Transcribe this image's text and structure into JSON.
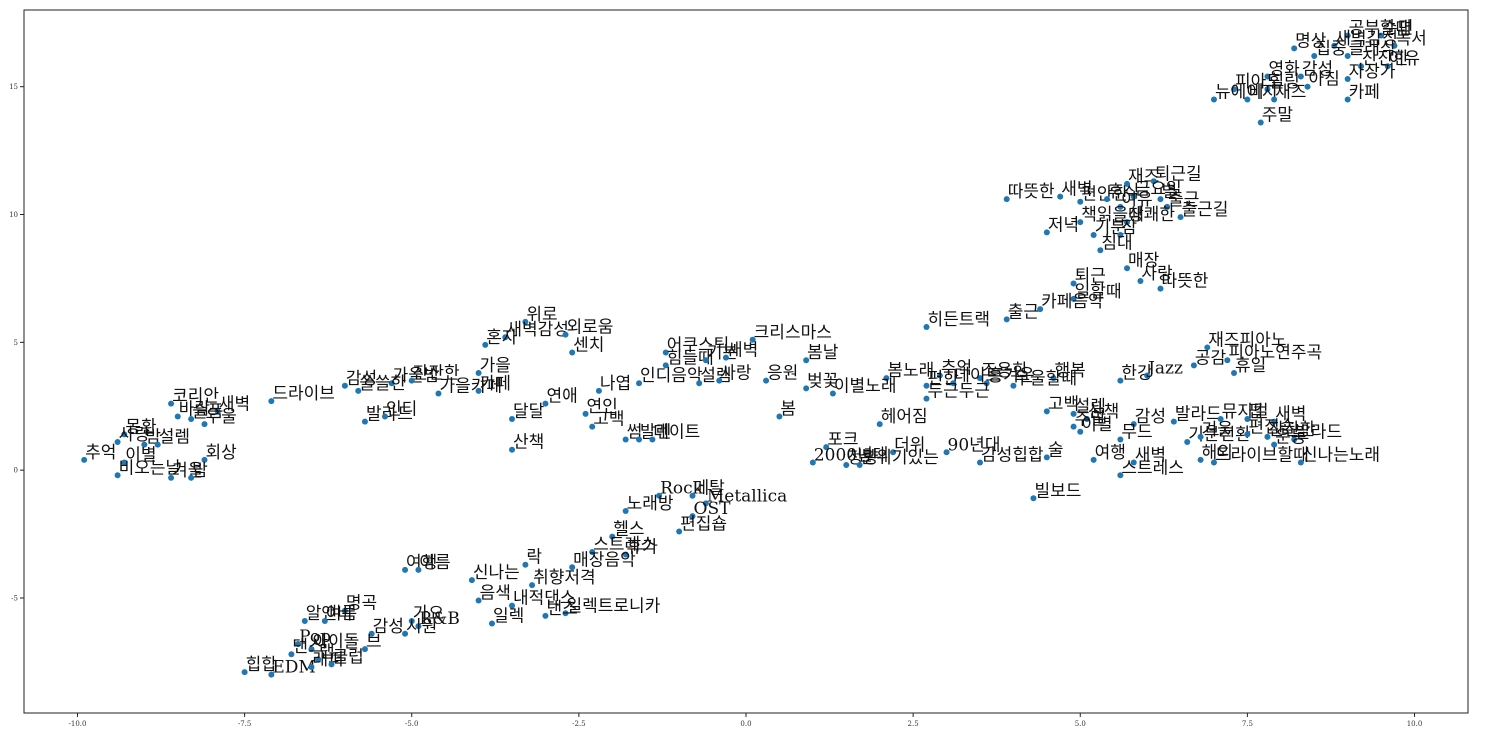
{
  "chart_data": {
    "type": "scatter",
    "title": "",
    "xlabel": "",
    "ylabel": "",
    "xlim": [
      -10.8,
      10.8
    ],
    "ylim": [
      -9.5,
      18.0
    ],
    "xticks": [
      -10.0,
      -7.5,
      -5.0,
      -2.5,
      0.0,
      2.5,
      5.0,
      7.5,
      10.0
    ],
    "yticks": [
      -5,
      0,
      5,
      10,
      15
    ],
    "xtick_labels": [
      "-10.0",
      "-7.5",
      "-5.0",
      "-2.5",
      "0.0",
      "2.5",
      "5.0",
      "7.5",
      "10.0"
    ],
    "ytick_labels": [
      "-5",
      "0",
      "5",
      "10",
      "15"
    ],
    "grid": false,
    "point_color": "#1f77b4",
    "points": [
      {
        "label": "공부할때",
        "x": 9.0,
        "y": 17.0
      },
      {
        "label": "수면",
        "x": 9.5,
        "y": 17.0
      },
      {
        "label": "명상",
        "x": 8.2,
        "y": 16.5
      },
      {
        "label": "새벽감성",
        "x": 8.8,
        "y": 16.6
      },
      {
        "label": "독서",
        "x": 9.7,
        "y": 16.6
      },
      {
        "label": "집중",
        "x": 8.5,
        "y": 16.2
      },
      {
        "label": "클래식",
        "x": 9.0,
        "y": 16.2
      },
      {
        "label": "잔잔한",
        "x": 9.2,
        "y": 15.8
      },
      {
        "label": "여유",
        "x": 9.6,
        "y": 15.8
      },
      {
        "label": "영화",
        "x": 7.8,
        "y": 15.4
      },
      {
        "label": "감성",
        "x": 8.3,
        "y": 15.4
      },
      {
        "label": "자장가",
        "x": 9.0,
        "y": 15.3
      },
      {
        "label": "피아노",
        "x": 7.3,
        "y": 14.9
      },
      {
        "label": "힐링",
        "x": 7.8,
        "y": 14.9
      },
      {
        "label": "아침",
        "x": 8.4,
        "y": 15.0
      },
      {
        "label": "뉴에이지",
        "x": 7.0,
        "y": 14.5
      },
      {
        "label": "비",
        "x": 7.5,
        "y": 14.5
      },
      {
        "label": "재즈",
        "x": 7.9,
        "y": 14.5
      },
      {
        "label": "카페",
        "x": 9.0,
        "y": 14.5
      },
      {
        "label": "주말",
        "x": 7.7,
        "y": 13.6
      },
      {
        "label": "따뜻한",
        "x": 3.9,
        "y": 10.6
      },
      {
        "label": "새벽",
        "x": 4.7,
        "y": 10.7
      },
      {
        "label": "편안한",
        "x": 5.0,
        "y": 10.5
      },
      {
        "label": "휴식",
        "x": 5.4,
        "y": 10.6
      },
      {
        "label": "재즈",
        "x": 5.7,
        "y": 11.2
      },
      {
        "label": "퇴근길",
        "x": 6.1,
        "y": 11.3
      },
      {
        "label": "금요일",
        "x": 5.8,
        "y": 10.7
      },
      {
        "label": "별",
        "x": 6.2,
        "y": 10.6
      },
      {
        "label": "출근",
        "x": 6.3,
        "y": 10.3
      },
      {
        "label": "출근길",
        "x": 6.5,
        "y": 9.9
      },
      {
        "label": "여유",
        "x": 5.6,
        "y": 10.3
      },
      {
        "label": "책읽을때",
        "x": 5.0,
        "y": 9.7
      },
      {
        "label": "상쾌한",
        "x": 5.7,
        "y": 9.7
      },
      {
        "label": "저녁",
        "x": 4.5,
        "y": 9.3
      },
      {
        "label": "기분",
        "x": 5.2,
        "y": 9.2
      },
      {
        "label": "잠",
        "x": 5.6,
        "y": 9.2
      },
      {
        "label": "침대",
        "x": 5.3,
        "y": 8.6
      },
      {
        "label": "매장",
        "x": 5.7,
        "y": 7.9
      },
      {
        "label": "퇴근",
        "x": 4.9,
        "y": 7.3
      },
      {
        "label": "사랑",
        "x": 5.9,
        "y": 7.4
      },
      {
        "label": "따뜻한",
        "x": 6.2,
        "y": 7.1
      },
      {
        "label": "일할때",
        "x": 4.9,
        "y": 6.7
      },
      {
        "label": "카페음악",
        "x": 4.4,
        "y": 6.3
      },
      {
        "label": "출근",
        "x": 3.9,
        "y": 5.9
      },
      {
        "label": "히든트랙",
        "x": 2.7,
        "y": 5.6
      },
      {
        "label": "재즈피아노",
        "x": 6.9,
        "y": 4.8
      },
      {
        "label": "공감",
        "x": 6.7,
        "y": 4.1
      },
      {
        "label": "피아노연주곡",
        "x": 7.2,
        "y": 4.3
      },
      {
        "label": "휴일",
        "x": 7.3,
        "y": 3.8
      },
      {
        "label": "한강",
        "x": 5.6,
        "y": 3.5
      },
      {
        "label": "Jazz",
        "x": 6.0,
        "y": 3.7
      },
      {
        "label": "행복",
        "x": 4.6,
        "y": 3.6
      },
      {
        "label": "추억",
        "x": 2.9,
        "y": 3.7
      },
      {
        "label": "조용한",
        "x": 3.5,
        "y": 3.6
      },
      {
        "label": "봄노래",
        "x": 2.1,
        "y": 3.6
      },
      {
        "label": "편한",
        "x": 2.7,
        "y": 3.3
      },
      {
        "label": "데이트",
        "x": 3.1,
        "y": 3.4
      },
      {
        "label": "흥겨운",
        "x": 3.6,
        "y": 3.4
      },
      {
        "label": "우울할때",
        "x": 4.0,
        "y": 3.3
      },
      {
        "label": "두근두근",
        "x": 2.7,
        "y": 2.8
      },
      {
        "label": "이별노래",
        "x": 1.3,
        "y": 3.0
      },
      {
        "label": "벚꽃",
        "x": 0.9,
        "y": 3.2
      },
      {
        "label": "봄날",
        "x": 0.9,
        "y": 4.3
      },
      {
        "label": "크리스마스",
        "x": 0.1,
        "y": 5.1
      },
      {
        "label": "봄",
        "x": 0.5,
        "y": 2.1
      },
      {
        "label": "헤어짐",
        "x": 2.0,
        "y": 1.8
      },
      {
        "label": "고백",
        "x": 4.5,
        "y": 2.3
      },
      {
        "label": "설렘",
        "x": 4.9,
        "y": 2.2
      },
      {
        "label": "산책",
        "x": 5.1,
        "y": 2.0
      },
      {
        "label": "주말",
        "x": 4.9,
        "y": 1.7
      },
      {
        "label": "이별",
        "x": 5.0,
        "y": 1.5
      },
      {
        "label": "감성",
        "x": 5.8,
        "y": 1.8
      },
      {
        "label": "무드",
        "x": 5.6,
        "y": 1.2
      },
      {
        "label": "발라드",
        "x": 6.4,
        "y": 1.9
      },
      {
        "label": "기분전환",
        "x": 6.6,
        "y": 1.1
      },
      {
        "label": "겨울",
        "x": 6.8,
        "y": 1.3
      },
      {
        "label": "뮤지컬",
        "x": 7.1,
        "y": 2.0
      },
      {
        "label": "팝",
        "x": 7.5,
        "y": 2.0
      },
      {
        "label": "새벽",
        "x": 7.9,
        "y": 1.9
      },
      {
        "label": "편집숍",
        "x": 7.5,
        "y": 1.4
      },
      {
        "label": "잔잔한",
        "x": 7.8,
        "y": 1.3
      },
      {
        "label": "발라드",
        "x": 8.2,
        "y": 1.2
      },
      {
        "label": "운동",
        "x": 7.9,
        "y": 1.0
      },
      {
        "label": "드라이브할때",
        "x": 7.0,
        "y": 0.3
      },
      {
        "label": "신나는노래",
        "x": 8.3,
        "y": 0.3
      },
      {
        "label": "해외",
        "x": 6.8,
        "y": 0.4
      },
      {
        "label": "여행",
        "x": 5.2,
        "y": 0.4
      },
      {
        "label": "스트레스",
        "x": 5.6,
        "y": -0.2
      },
      {
        "label": "새벽",
        "x": 5.8,
        "y": 0.3
      },
      {
        "label": "빌보드",
        "x": 4.3,
        "y": -1.1
      },
      {
        "label": "90년대",
        "x": 3.0,
        "y": 0.7
      },
      {
        "label": "감성힙합",
        "x": 3.5,
        "y": 0.3
      },
      {
        "label": "술",
        "x": 4.5,
        "y": 0.5
      },
      {
        "label": "더위",
        "x": 2.2,
        "y": 0.7
      },
      {
        "label": "포크",
        "x": 1.2,
        "y": 0.9
      },
      {
        "label": "2000년대",
        "x": 1.0,
        "y": 0.3
      },
      {
        "label": "청량",
        "x": 1.5,
        "y": 0.2
      },
      {
        "label": "분위기있는",
        "x": 1.7,
        "y": 0.2
      },
      {
        "label": "위로",
        "x": -3.3,
        "y": 5.8
      },
      {
        "label": "새벽감성",
        "x": -3.6,
        "y": 5.2
      },
      {
        "label": "외로움",
        "x": -2.7,
        "y": 5.3
      },
      {
        "label": "혼자",
        "x": -3.9,
        "y": 4.9
      },
      {
        "label": "센치",
        "x": -2.6,
        "y": 4.6
      },
      {
        "label": "가을",
        "x": -4.0,
        "y": 3.8
      },
      {
        "label": "가을카페",
        "x": -4.6,
        "y": 3.0
      },
      {
        "label": "카페",
        "x": -4.0,
        "y": 3.1
      },
      {
        "label": "가을밤",
        "x": -5.3,
        "y": 3.4
      },
      {
        "label": "잔잔한",
        "x": -5.0,
        "y": 3.5
      },
      {
        "label": "감성",
        "x": -6.0,
        "y": 3.3
      },
      {
        "label": "쓸쓸한",
        "x": -5.8,
        "y": 3.1
      },
      {
        "label": "드라이브",
        "x": -7.1,
        "y": 2.7
      },
      {
        "label": "발라드",
        "x": -5.7,
        "y": 1.9
      },
      {
        "label": "인디",
        "x": -5.4,
        "y": 2.1
      },
      {
        "label": "달달",
        "x": -3.5,
        "y": 2.0
      },
      {
        "label": "연애",
        "x": -3.0,
        "y": 2.6
      },
      {
        "label": "나엽",
        "x": -2.2,
        "y": 3.1
      },
      {
        "label": "연인",
        "x": -2.4,
        "y": 2.2
      },
      {
        "label": "고백",
        "x": -2.3,
        "y": 1.7
      },
      {
        "label": "썸",
        "x": -1.8,
        "y": 1.2
      },
      {
        "label": "발렌",
        "x": -1.6,
        "y": 1.2
      },
      {
        "label": "데이트",
        "x": -1.4,
        "y": 1.2
      },
      {
        "label": "산책",
        "x": -3.5,
        "y": 0.8
      },
      {
        "label": "어쿠스틱",
        "x": -1.2,
        "y": 4.6
      },
      {
        "label": "힘들때",
        "x": -1.2,
        "y": 4.1
      },
      {
        "label": "기분",
        "x": -0.6,
        "y": 4.3
      },
      {
        "label": "새벽",
        "x": -0.3,
        "y": 4.4
      },
      {
        "label": "인디음악",
        "x": -1.6,
        "y": 3.4
      },
      {
        "label": "설렘",
        "x": -0.7,
        "y": 3.4
      },
      {
        "label": "사랑",
        "x": -0.4,
        "y": 3.5
      },
      {
        "label": "응원",
        "x": 0.3,
        "y": 3.5
      },
      {
        "label": "코리안",
        "x": -8.6,
        "y": 2.6
      },
      {
        "label": "새벽",
        "x": -7.9,
        "y": 2.3
      },
      {
        "label": "바람",
        "x": -8.5,
        "y": 2.1
      },
      {
        "label": "슬픔",
        "x": -8.3,
        "y": 2.0
      },
      {
        "label": "우울",
        "x": -8.1,
        "y": 1.8
      },
      {
        "label": "몽환",
        "x": -9.3,
        "y": 1.4
      },
      {
        "label": "사랑",
        "x": -9.4,
        "y": 1.1
      },
      {
        "label": "밤",
        "x": -9.0,
        "y": 1.0
      },
      {
        "label": "설렘",
        "x": -8.8,
        "y": 1.0
      },
      {
        "label": "추억",
        "x": -9.9,
        "y": 0.4
      },
      {
        "label": "이별",
        "x": -9.3,
        "y": 0.3
      },
      {
        "label": "회상",
        "x": -8.1,
        "y": 0.4
      },
      {
        "label": "비오는날",
        "x": -9.4,
        "y": -0.2
      },
      {
        "label": "겨울",
        "x": -8.6,
        "y": -0.3
      },
      {
        "label": "밤",
        "x": -8.3,
        "y": -0.3
      },
      {
        "label": "Rock",
        "x": -1.3,
        "y": -1.0
      },
      {
        "label": "메탈",
        "x": -0.8,
        "y": -1.0
      },
      {
        "label": "Metallica",
        "x": -0.6,
        "y": -1.3
      },
      {
        "label": "노래방",
        "x": -1.8,
        "y": -1.6
      },
      {
        "label": "OST",
        "x": -0.8,
        "y": -1.8
      },
      {
        "label": "편집숍",
        "x": -1.0,
        "y": -2.4
      },
      {
        "label": "헬스",
        "x": -2.0,
        "y": -2.6
      },
      {
        "label": "스트레스",
        "x": -2.3,
        "y": -3.2
      },
      {
        "label": "휴가",
        "x": -1.8,
        "y": -3.3
      },
      {
        "label": "락",
        "x": -3.3,
        "y": -3.7
      },
      {
        "label": "매장음악",
        "x": -2.6,
        "y": -3.8
      },
      {
        "label": "신나는",
        "x": -4.1,
        "y": -4.3
      },
      {
        "label": "취향저격",
        "x": -3.2,
        "y": -4.5
      },
      {
        "label": "음색",
        "x": -4.0,
        "y": -5.1
      },
      {
        "label": "내적댄스",
        "x": -3.5,
        "y": -5.3
      },
      {
        "label": "일렉트로니카",
        "x": -2.7,
        "y": -5.6
      },
      {
        "label": "일렉",
        "x": -3.8,
        "y": -6.0
      },
      {
        "label": "댄스",
        "x": -3.0,
        "y": -5.7
      },
      {
        "label": "여행",
        "x": -5.1,
        "y": -3.9
      },
      {
        "label": "여름",
        "x": -4.9,
        "y": -3.9
      },
      {
        "label": "명곡",
        "x": -6.0,
        "y": -5.5
      },
      {
        "label": "알앤비",
        "x": -6.6,
        "y": -5.9
      },
      {
        "label": "여름",
        "x": -6.3,
        "y": -5.9
      },
      {
        "label": "R&B",
        "x": -4.9,
        "y": -6.1
      },
      {
        "label": "가요",
        "x": -5.0,
        "y": -5.9
      },
      {
        "label": "감성",
        "x": -5.6,
        "y": -6.4
      },
      {
        "label": "시원",
        "x": -5.1,
        "y": -6.4
      },
      {
        "label": "Pop",
        "x": -6.7,
        "y": -6.8
      },
      {
        "label": "아이돌",
        "x": -6.5,
        "y": -7.0
      },
      {
        "label": "브",
        "x": -5.7,
        "y": -7.0
      },
      {
        "label": "댄스",
        "x": -6.8,
        "y": -7.2
      },
      {
        "label": "랩",
        "x": -6.4,
        "y": -7.4
      },
      {
        "label": "힙합",
        "x": -7.5,
        "y": -7.9
      },
      {
        "label": "EDM",
        "x": -7.1,
        "y": -8.0
      },
      {
        "label": "래퍼",
        "x": -6.5,
        "y": -7.7
      },
      {
        "label": "클럽",
        "x": -6.2,
        "y": -7.6
      }
    ]
  }
}
